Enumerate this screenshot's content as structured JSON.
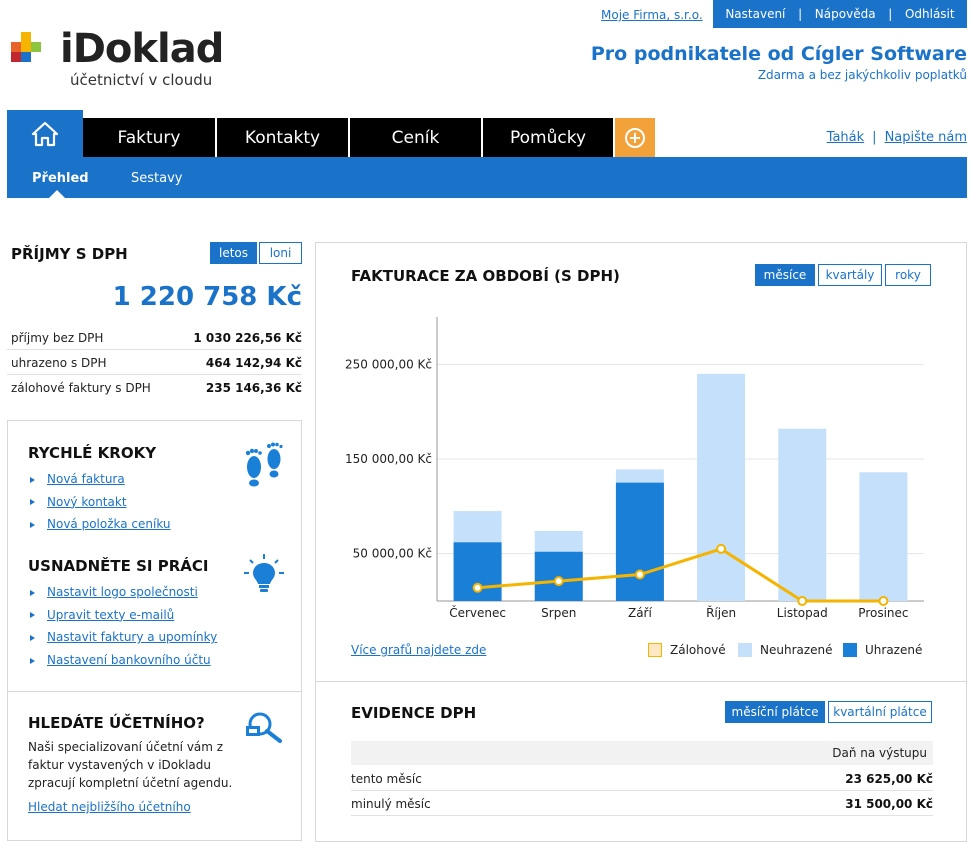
{
  "header": {
    "firm_link": "Moje Firma, s.r.o.",
    "top_nav": [
      "Nastavení",
      "Nápověda",
      "Odhlásit"
    ],
    "logo_text": "iDoklad",
    "logo_sub": "účetnictví v cloudu",
    "promo_title": "Pro podnikatele od Cígler Software",
    "promo_sub": "Zdarma a bez jakýchkoliv poplatků"
  },
  "nav": {
    "tabs": [
      "Faktury",
      "Kontakty",
      "Ceník",
      "Pomůcky"
    ],
    "help_links": [
      "Tahák",
      "Napište nám"
    ],
    "subtabs": [
      "Přehled",
      "Sestavy"
    ],
    "accent": "#1a73c8",
    "plus_color": "#f3a23a"
  },
  "revenue": {
    "title": "PŘÍJMY S DPH",
    "toggle": [
      "letos",
      "loni"
    ],
    "total": "1 220 758 Kč",
    "rows": [
      {
        "label": "příjmy bez DPH",
        "value": "1 030 226,56 Kč"
      },
      {
        "label": "uhrazeno s DPH",
        "value": "464 142,94 Kč"
      },
      {
        "label": "zálohové faktury s DPH",
        "value": "235 146,36 Kč"
      }
    ]
  },
  "quick_steps": {
    "title": "RYCHLÉ KROKY",
    "icon": "footprints-icon",
    "links": [
      "Nová faktura",
      "Nový kontakt",
      "Nová položka ceníku"
    ]
  },
  "simplify": {
    "title": "USNADNĚTE SI PRÁCI",
    "icon": "lightbulb-icon",
    "links": [
      "Nastavit logo společnosti",
      "Upravit texty e-mailů",
      "Nastavit faktury a upomínky",
      "Nastavení bankovního účtu"
    ]
  },
  "accountant": {
    "title": "HLEDÁTE ÚČETNÍHO?",
    "icon": "magnifier-icon",
    "text": "Naši specializovaní účetní vám z faktur vystavených v iDokladu zpracují kompletní účetní agendu.",
    "link": "Hledat nejbližšího účetního"
  },
  "invoicing": {
    "title": "FAKTURACE ZA OBDOBÍ (S DPH)",
    "toggle": [
      "měsíce",
      "kvartály",
      "roky"
    ],
    "more_link": "Více grafů najdete zde",
    "legend": [
      "Zálohové",
      "Neuhrazené",
      "Uhrazené"
    ]
  },
  "chart_data": {
    "type": "bar",
    "categories": [
      "Červenec",
      "Srpen",
      "Září",
      "Říjen",
      "Listopad",
      "Prosinec"
    ],
    "series": [
      {
        "name": "Uhrazené",
        "values": [
          62000,
          52000,
          125000,
          0,
          0,
          0
        ]
      },
      {
        "name": "Neuhrazené",
        "values": [
          33000,
          22000,
          14000,
          240000,
          182000,
          136000
        ]
      },
      {
        "name": "Zálohové",
        "values": [
          14000,
          21000,
          28000,
          55000,
          0,
          0
        ]
      }
    ],
    "line_series": "Zálohové",
    "ytick_labels": [
      "50 000,00 Kč",
      "150 000,00 Kč",
      "250 000,00 Kč"
    ],
    "yticks": [
      50000,
      150000,
      250000
    ],
    "ylim": [
      0,
      300000
    ],
    "colors": {
      "Uhrazené": "#1a7fd6",
      "Neuhrazené": "#c5e0fb",
      "Zálohové": "#f4b400",
      "Zálohové_legend": "#fde6c3"
    },
    "grid": true,
    "legend_position": "bottom-right"
  },
  "dph": {
    "title": "EVIDENCE DPH",
    "toggle": [
      "měsíční plátce",
      "kvartální plátce"
    ],
    "column": "Daň na výstupu",
    "rows": [
      {
        "label": "tento měsíc",
        "value": "23 625,00 Kč"
      },
      {
        "label": "minulý měsíc",
        "value": "31 500,00 Kč"
      }
    ]
  }
}
